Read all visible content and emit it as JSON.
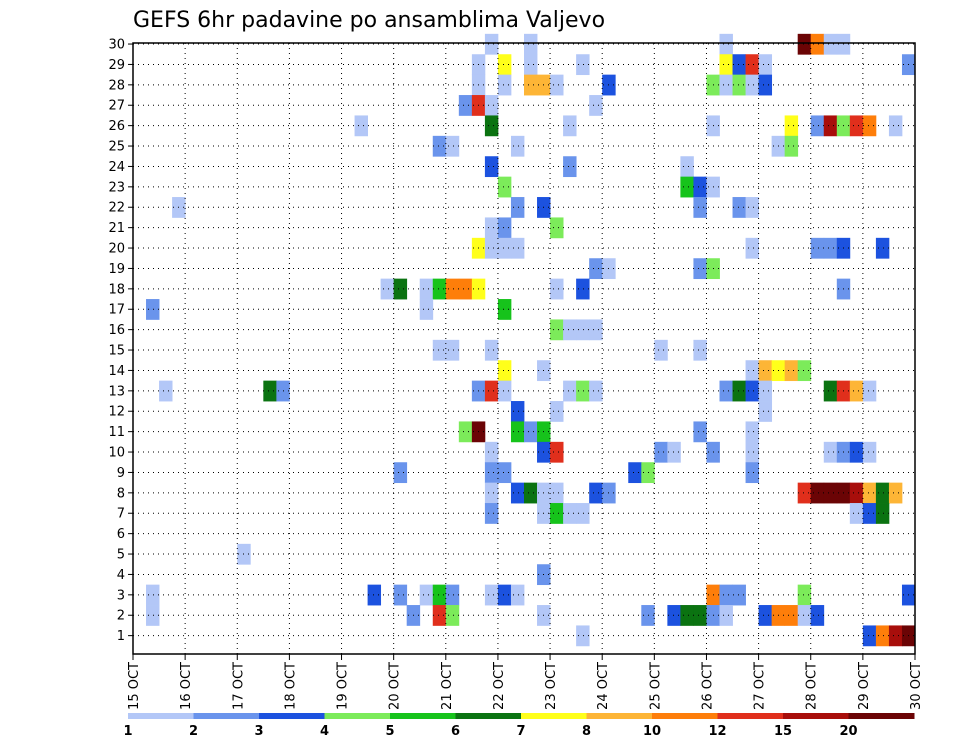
{
  "chart_data": {
    "type": "heatmap",
    "title": "GEFS 6hr padavine po ansamblima Valjevo",
    "xlabel": "",
    "ylabel": "",
    "x_tick_labels": [
      "15 OCT",
      "16 OCT",
      "17 OCT",
      "18 OCT",
      "19 OCT",
      "20 OCT",
      "21 OCT",
      "22 OCT",
      "23 OCT",
      "24 OCT",
      "25 OCT",
      "26 OCT",
      "27 OCT",
      "28 OCT",
      "29 OCT",
      "30 OCT"
    ],
    "y_tick_labels": [
      "1",
      "2",
      "3",
      "4",
      "5",
      "6",
      "7",
      "8",
      "9",
      "10",
      "11",
      "12",
      "13",
      "14",
      "15",
      "16",
      "17",
      "18",
      "19",
      "20",
      "21",
      "22",
      "23",
      "24",
      "25",
      "26",
      "27",
      "28",
      "29",
      "30"
    ],
    "xlim": [
      0,
      60
    ],
    "ylim": [
      0,
      30
    ],
    "grid": "dotted",
    "colorbar": {
      "tick_labels": [
        "1",
        "2",
        "3",
        "4",
        "5",
        "6",
        "7",
        "8",
        "10",
        "12",
        "15",
        "20"
      ],
      "colors": [
        "#b3c7f7",
        "#6a94ec",
        "#1c52df",
        "#7ceb5a",
        "#16c31b",
        "#0b7311",
        "#ffff1a",
        "#fdb536",
        "#fe7e0a",
        "#e02f1c",
        "#a80e0b",
        "#6b0405"
      ]
    },
    "cells_note": "each cell = [time step index (6h steps from 15 OCT 00Z), ensemble member, color class index]",
    "cells": [
      [
        27,
        30,
        0
      ],
      [
        30,
        30,
        0
      ],
      [
        45,
        30,
        0
      ],
      [
        51,
        30,
        11
      ],
      [
        52,
        30,
        8
      ],
      [
        53,
        30,
        0
      ],
      [
        54,
        30,
        0
      ],
      [
        26,
        29,
        0
      ],
      [
        28,
        29,
        6
      ],
      [
        30,
        29,
        0
      ],
      [
        34,
        29,
        0
      ],
      [
        45,
        29,
        6
      ],
      [
        46,
        29,
        2
      ],
      [
        47,
        29,
        9
      ],
      [
        48,
        29,
        0
      ],
      [
        59,
        29,
        1
      ],
      [
        26,
        28,
        0
      ],
      [
        28,
        28,
        0
      ],
      [
        30,
        28,
        7
      ],
      [
        31,
        28,
        7
      ],
      [
        32,
        28,
        0
      ],
      [
        36,
        28,
        2
      ],
      [
        44,
        28,
        3
      ],
      [
        45,
        28,
        0
      ],
      [
        46,
        28,
        3
      ],
      [
        47,
        28,
        0
      ],
      [
        48,
        28,
        2
      ],
      [
        25,
        27,
        1
      ],
      [
        26,
        27,
        9
      ],
      [
        27,
        27,
        0
      ],
      [
        35,
        27,
        0
      ],
      [
        17,
        26,
        0
      ],
      [
        27,
        26,
        5
      ],
      [
        33,
        26,
        0
      ],
      [
        44,
        26,
        0
      ],
      [
        50,
        26,
        6
      ],
      [
        52,
        26,
        1
      ],
      [
        53,
        26,
        10
      ],
      [
        54,
        26,
        3
      ],
      [
        55,
        26,
        9
      ],
      [
        56,
        26,
        8
      ],
      [
        58,
        26,
        0
      ],
      [
        23,
        25,
        1
      ],
      [
        24,
        25,
        0
      ],
      [
        29,
        25,
        0
      ],
      [
        49,
        25,
        0
      ],
      [
        50,
        25,
        3
      ],
      [
        27,
        24,
        2
      ],
      [
        33,
        24,
        1
      ],
      [
        42,
        24,
        0
      ],
      [
        28,
        23,
        3
      ],
      [
        42,
        23,
        4
      ],
      [
        43,
        23,
        2
      ],
      [
        44,
        23,
        0
      ],
      [
        3,
        22,
        0
      ],
      [
        29,
        22,
        1
      ],
      [
        31,
        22,
        2
      ],
      [
        43,
        22,
        1
      ],
      [
        46,
        22,
        1
      ],
      [
        47,
        22,
        0
      ],
      [
        27,
        21,
        0
      ],
      [
        28,
        21,
        1
      ],
      [
        32,
        21,
        3
      ],
      [
        26,
        20,
        6
      ],
      [
        27,
        20,
        0
      ],
      [
        28,
        20,
        0
      ],
      [
        29,
        20,
        0
      ],
      [
        47,
        20,
        0
      ],
      [
        52,
        20,
        1
      ],
      [
        53,
        20,
        1
      ],
      [
        54,
        20,
        2
      ],
      [
        57,
        20,
        2
      ],
      [
        35,
        19,
        1
      ],
      [
        36,
        19,
        0
      ],
      [
        43,
        19,
        1
      ],
      [
        44,
        19,
        3
      ],
      [
        19,
        18,
        0
      ],
      [
        20,
        18,
        5
      ],
      [
        22,
        18,
        0
      ],
      [
        23,
        18,
        4
      ],
      [
        24,
        18,
        8
      ],
      [
        25,
        18,
        8
      ],
      [
        26,
        18,
        6
      ],
      [
        32,
        18,
        0
      ],
      [
        34,
        18,
        2
      ],
      [
        54,
        18,
        1
      ],
      [
        1,
        17,
        1
      ],
      [
        22,
        17,
        0
      ],
      [
        28,
        17,
        4
      ],
      [
        32,
        16,
        3
      ],
      [
        33,
        16,
        0
      ],
      [
        34,
        16,
        0
      ],
      [
        35,
        16,
        0
      ],
      [
        23,
        15,
        0
      ],
      [
        24,
        15,
        0
      ],
      [
        27,
        15,
        0
      ],
      [
        40,
        15,
        0
      ],
      [
        43,
        15,
        0
      ],
      [
        28,
        14,
        6
      ],
      [
        31,
        14,
        0
      ],
      [
        47,
        14,
        0
      ],
      [
        48,
        14,
        7
      ],
      [
        49,
        14,
        6
      ],
      [
        50,
        14,
        7
      ],
      [
        51,
        14,
        3
      ],
      [
        2,
        13,
        0
      ],
      [
        10,
        13,
        5
      ],
      [
        11,
        13,
        1
      ],
      [
        26,
        13,
        1
      ],
      [
        27,
        13,
        9
      ],
      [
        28,
        13,
        0
      ],
      [
        33,
        13,
        0
      ],
      [
        34,
        13,
        3
      ],
      [
        35,
        13,
        0
      ],
      [
        45,
        13,
        1
      ],
      [
        46,
        13,
        5
      ],
      [
        47,
        13,
        2
      ],
      [
        48,
        13,
        0
      ],
      [
        53,
        13,
        5
      ],
      [
        54,
        13,
        9
      ],
      [
        55,
        13,
        7
      ],
      [
        56,
        13,
        0
      ],
      [
        29,
        12,
        2
      ],
      [
        32,
        12,
        0
      ],
      [
        48,
        12,
        0
      ],
      [
        25,
        11,
        3
      ],
      [
        26,
        11,
        11
      ],
      [
        29,
        11,
        4
      ],
      [
        30,
        11,
        1
      ],
      [
        31,
        11,
        4
      ],
      [
        43,
        11,
        1
      ],
      [
        47,
        11,
        0
      ],
      [
        27,
        10,
        0
      ],
      [
        31,
        10,
        2
      ],
      [
        32,
        10,
        9
      ],
      [
        40,
        10,
        1
      ],
      [
        41,
        10,
        0
      ],
      [
        44,
        10,
        1
      ],
      [
        47,
        10,
        0
      ],
      [
        53,
        10,
        0
      ],
      [
        54,
        10,
        1
      ],
      [
        55,
        10,
        2
      ],
      [
        56,
        10,
        0
      ],
      [
        20,
        9,
        1
      ],
      [
        27,
        9,
        1
      ],
      [
        28,
        9,
        1
      ],
      [
        38,
        9,
        2
      ],
      [
        39,
        9,
        3
      ],
      [
        47,
        9,
        1
      ],
      [
        27,
        8,
        0
      ],
      [
        29,
        8,
        2
      ],
      [
        30,
        8,
        5
      ],
      [
        31,
        8,
        0
      ],
      [
        32,
        8,
        0
      ],
      [
        35,
        8,
        2
      ],
      [
        36,
        8,
        1
      ],
      [
        51,
        8,
        9
      ],
      [
        52,
        8,
        11
      ],
      [
        53,
        8,
        11
      ],
      [
        54,
        8,
        11
      ],
      [
        55,
        8,
        10
      ],
      [
        56,
        8,
        7
      ],
      [
        57,
        8,
        5
      ],
      [
        58,
        8,
        7
      ],
      [
        27,
        7,
        1
      ],
      [
        31,
        7,
        0
      ],
      [
        32,
        7,
        4
      ],
      [
        33,
        7,
        0
      ],
      [
        34,
        7,
        0
      ],
      [
        55,
        7,
        0
      ],
      [
        56,
        7,
        2
      ],
      [
        57,
        7,
        5
      ],
      [
        8,
        5,
        0
      ],
      [
        31,
        4,
        1
      ],
      [
        1,
        3,
        0
      ],
      [
        18,
        3,
        2
      ],
      [
        20,
        3,
        1
      ],
      [
        22,
        3,
        0
      ],
      [
        23,
        3,
        4
      ],
      [
        24,
        3,
        1
      ],
      [
        27,
        3,
        0
      ],
      [
        28,
        3,
        2
      ],
      [
        29,
        3,
        0
      ],
      [
        44,
        3,
        8
      ],
      [
        45,
        3,
        1
      ],
      [
        46,
        3,
        1
      ],
      [
        51,
        3,
        3
      ],
      [
        59,
        3,
        2
      ],
      [
        1,
        2,
        0
      ],
      [
        21,
        2,
        1
      ],
      [
        23,
        2,
        9
      ],
      [
        24,
        2,
        3
      ],
      [
        31,
        2,
        0
      ],
      [
        39,
        2,
        1
      ],
      [
        41,
        2,
        2
      ],
      [
        42,
        2,
        5
      ],
      [
        43,
        2,
        5
      ],
      [
        44,
        2,
        1
      ],
      [
        45,
        2,
        0
      ],
      [
        48,
        2,
        2
      ],
      [
        49,
        2,
        8
      ],
      [
        50,
        2,
        8
      ],
      [
        51,
        2,
        0
      ],
      [
        52,
        2,
        2
      ],
      [
        34,
        1,
        0
      ],
      [
        56,
        1,
        2
      ],
      [
        57,
        1,
        8
      ],
      [
        58,
        1,
        10
      ],
      [
        59,
        1,
        11
      ]
    ]
  }
}
